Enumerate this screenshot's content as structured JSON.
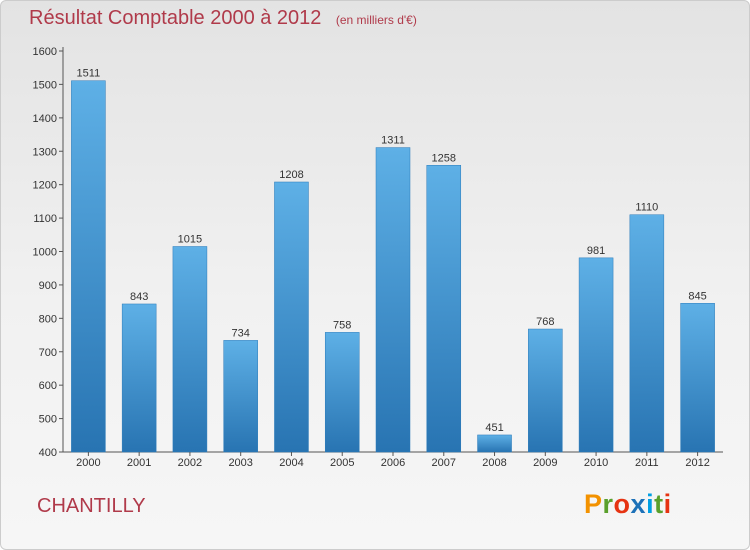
{
  "title": "Résultat Comptable 2000 à 2012",
  "subtitle": "(en milliers d'€)",
  "commune": "CHANTILLY",
  "brand": "Proxiti",
  "colors": {
    "bar": "#2c86c7",
    "bar_light": "#5eb0e6",
    "title": "#b03a4a",
    "axis": "#444444"
  },
  "chart_data": {
    "type": "bar",
    "title": "Résultat Comptable 2000 à 2012",
    "subtitle": "(en milliers d'€)",
    "categories": [
      "2000",
      "2001",
      "2002",
      "2003",
      "2004",
      "2005",
      "2006",
      "2007",
      "2008",
      "2009",
      "2010",
      "2011",
      "2012"
    ],
    "values": [
      1511,
      843,
      1015,
      734,
      1208,
      758,
      1311,
      1258,
      451,
      768,
      981,
      1110,
      845
    ],
    "ylim": [
      400,
      1600
    ],
    "yticks": [
      400,
      500,
      600,
      700,
      800,
      900,
      1000,
      1100,
      1200,
      1300,
      1400,
      1500,
      1600
    ],
    "xlabel": "",
    "ylabel": "",
    "grid": false,
    "data_labels": true
  }
}
